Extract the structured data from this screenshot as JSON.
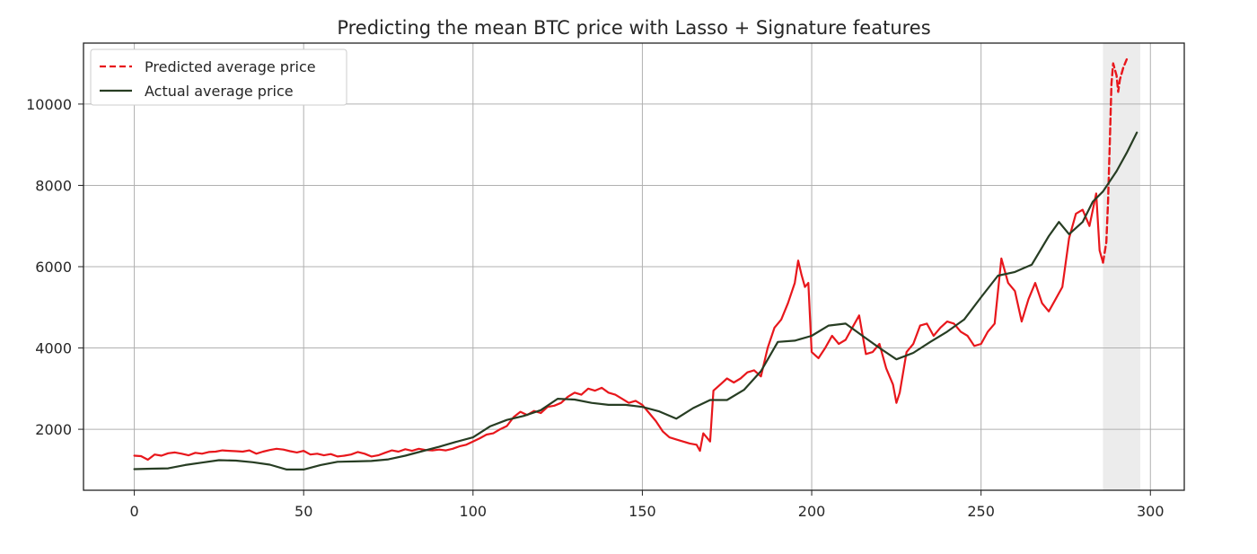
{
  "chart_data": {
    "type": "line",
    "title": "Predicting the mean BTC price with Lasso + Signature features",
    "xlabel": "",
    "ylabel": "",
    "xlim": [
      -15,
      310
    ],
    "ylim": [
      500,
      11500
    ],
    "xticks": [
      0,
      50,
      100,
      150,
      200,
      250,
      300
    ],
    "yticks": [
      2000,
      4000,
      6000,
      8000,
      10000
    ],
    "grid": true,
    "legend_position": "top-left",
    "highlight_region": [
      286,
      297
    ],
    "highlight_color": "#ececec",
    "series": [
      {
        "name": "Predicted average price",
        "color": "#e8171c",
        "style": "solid",
        "points": [
          [
            0,
            1350
          ],
          [
            2,
            1340
          ],
          [
            4,
            1250
          ],
          [
            6,
            1380
          ],
          [
            8,
            1350
          ],
          [
            10,
            1410
          ],
          [
            12,
            1430
          ],
          [
            14,
            1400
          ],
          [
            16,
            1360
          ],
          [
            18,
            1420
          ],
          [
            20,
            1400
          ],
          [
            22,
            1440
          ],
          [
            24,
            1450
          ],
          [
            26,
            1480
          ],
          [
            28,
            1470
          ],
          [
            30,
            1460
          ],
          [
            32,
            1450
          ],
          [
            34,
            1480
          ],
          [
            36,
            1400
          ],
          [
            38,
            1450
          ],
          [
            40,
            1490
          ],
          [
            42,
            1520
          ],
          [
            44,
            1500
          ],
          [
            46,
            1460
          ],
          [
            48,
            1430
          ],
          [
            50,
            1470
          ],
          [
            52,
            1380
          ],
          [
            54,
            1400
          ],
          [
            56,
            1360
          ],
          [
            58,
            1390
          ],
          [
            60,
            1330
          ],
          [
            62,
            1350
          ],
          [
            64,
            1380
          ],
          [
            66,
            1440
          ],
          [
            68,
            1400
          ],
          [
            70,
            1330
          ],
          [
            72,
            1360
          ],
          [
            74,
            1420
          ],
          [
            76,
            1480
          ],
          [
            78,
            1450
          ],
          [
            80,
            1510
          ],
          [
            82,
            1470
          ],
          [
            84,
            1520
          ],
          [
            86,
            1490
          ],
          [
            88,
            1480
          ],
          [
            90,
            1500
          ],
          [
            92,
            1480
          ],
          [
            94,
            1520
          ],
          [
            96,
            1580
          ],
          [
            98,
            1620
          ],
          [
            100,
            1700
          ],
          [
            102,
            1780
          ],
          [
            104,
            1870
          ],
          [
            106,
            1900
          ],
          [
            108,
            2000
          ],
          [
            110,
            2080
          ],
          [
            112,
            2300
          ],
          [
            114,
            2430
          ],
          [
            116,
            2350
          ],
          [
            118,
            2450
          ],
          [
            120,
            2400
          ],
          [
            122,
            2550
          ],
          [
            124,
            2580
          ],
          [
            126,
            2650
          ],
          [
            128,
            2800
          ],
          [
            130,
            2900
          ],
          [
            132,
            2850
          ],
          [
            134,
            3000
          ],
          [
            136,
            2950
          ],
          [
            138,
            3020
          ],
          [
            140,
            2900
          ],
          [
            142,
            2850
          ],
          [
            144,
            2750
          ],
          [
            146,
            2650
          ],
          [
            148,
            2700
          ],
          [
            150,
            2600
          ],
          [
            152,
            2400
          ],
          [
            154,
            2200
          ],
          [
            156,
            1950
          ],
          [
            158,
            1800
          ],
          [
            160,
            1750
          ],
          [
            162,
            1700
          ],
          [
            164,
            1650
          ],
          [
            166,
            1620
          ],
          [
            167,
            1470
          ],
          [
            168,
            1900
          ],
          [
            170,
            1700
          ],
          [
            171,
            2950
          ],
          [
            173,
            3100
          ],
          [
            175,
            3250
          ],
          [
            177,
            3150
          ],
          [
            179,
            3250
          ],
          [
            181,
            3400
          ],
          [
            183,
            3450
          ],
          [
            185,
            3300
          ],
          [
            187,
            4000
          ],
          [
            189,
            4500
          ],
          [
            191,
            4700
          ],
          [
            193,
            5100
          ],
          [
            195,
            5600
          ],
          [
            196,
            6150
          ],
          [
            197,
            5800
          ],
          [
            198,
            5500
          ],
          [
            199,
            5600
          ],
          [
            200,
            3900
          ],
          [
            202,
            3750
          ],
          [
            204,
            4000
          ],
          [
            206,
            4300
          ],
          [
            208,
            4100
          ],
          [
            210,
            4200
          ],
          [
            212,
            4500
          ],
          [
            214,
            4800
          ],
          [
            216,
            3850
          ],
          [
            218,
            3900
          ],
          [
            220,
            4100
          ],
          [
            222,
            3500
          ],
          [
            224,
            3100
          ],
          [
            225,
            2650
          ],
          [
            226,
            2900
          ],
          [
            228,
            3900
          ],
          [
            230,
            4100
          ],
          [
            232,
            4550
          ],
          [
            234,
            4600
          ],
          [
            236,
            4300
          ],
          [
            238,
            4500
          ],
          [
            240,
            4650
          ],
          [
            242,
            4600
          ],
          [
            244,
            4400
          ],
          [
            246,
            4300
          ],
          [
            248,
            4050
          ],
          [
            250,
            4100
          ],
          [
            252,
            4400
          ],
          [
            254,
            4600
          ],
          [
            256,
            6200
          ],
          [
            258,
            5600
          ],
          [
            260,
            5400
          ],
          [
            262,
            4650
          ],
          [
            264,
            5200
          ],
          [
            266,
            5600
          ],
          [
            268,
            5100
          ],
          [
            270,
            4900
          ],
          [
            272,
            5200
          ],
          [
            274,
            5500
          ],
          [
            276,
            6700
          ],
          [
            278,
            7300
          ],
          [
            280,
            7400
          ],
          [
            282,
            7000
          ],
          [
            284,
            7800
          ],
          [
            285,
            6400
          ],
          [
            286,
            6100
          ]
        ]
      },
      {
        "name": "",
        "color": "#e8171c",
        "style": "dashed",
        "points": [
          [
            286,
            6100
          ],
          [
            287,
            6600
          ],
          [
            287.5,
            7600
          ],
          [
            288,
            9000
          ],
          [
            288.5,
            10500
          ],
          [
            289,
            11000
          ],
          [
            290,
            10700
          ],
          [
            290.5,
            10300
          ],
          [
            291,
            10600
          ],
          [
            292,
            10900
          ],
          [
            293,
            11100
          ]
        ]
      },
      {
        "name": "Actual average price",
        "color": "#273d23",
        "style": "solid",
        "points": [
          [
            0,
            1020
          ],
          [
            5,
            1030
          ],
          [
            10,
            1040
          ],
          [
            15,
            1120
          ],
          [
            20,
            1180
          ],
          [
            25,
            1240
          ],
          [
            30,
            1230
          ],
          [
            35,
            1190
          ],
          [
            40,
            1130
          ],
          [
            45,
            1010
          ],
          [
            50,
            1010
          ],
          [
            55,
            1120
          ],
          [
            60,
            1200
          ],
          [
            65,
            1210
          ],
          [
            70,
            1220
          ],
          [
            75,
            1260
          ],
          [
            80,
            1350
          ],
          [
            85,
            1460
          ],
          [
            90,
            1570
          ],
          [
            95,
            1690
          ],
          [
            100,
            1800
          ],
          [
            105,
            2070
          ],
          [
            110,
            2230
          ],
          [
            115,
            2330
          ],
          [
            120,
            2470
          ],
          [
            125,
            2750
          ],
          [
            130,
            2730
          ],
          [
            135,
            2650
          ],
          [
            140,
            2600
          ],
          [
            145,
            2600
          ],
          [
            150,
            2550
          ],
          [
            155,
            2440
          ],
          [
            160,
            2260
          ],
          [
            165,
            2520
          ],
          [
            170,
            2720
          ],
          [
            175,
            2720
          ],
          [
            180,
            2970
          ],
          [
            185,
            3430
          ],
          [
            190,
            4150
          ],
          [
            195,
            4180
          ],
          [
            200,
            4300
          ],
          [
            205,
            4550
          ],
          [
            210,
            4600
          ],
          [
            215,
            4300
          ],
          [
            220,
            4000
          ],
          [
            225,
            3720
          ],
          [
            230,
            3880
          ],
          [
            235,
            4150
          ],
          [
            240,
            4400
          ],
          [
            245,
            4700
          ],
          [
            250,
            5250
          ],
          [
            255,
            5780
          ],
          [
            260,
            5870
          ],
          [
            265,
            6050
          ],
          [
            270,
            6750
          ],
          [
            273,
            7100
          ],
          [
            276,
            6800
          ],
          [
            280,
            7100
          ],
          [
            283,
            7600
          ],
          [
            286,
            7850
          ],
          [
            290,
            8350
          ],
          [
            293,
            8800
          ],
          [
            296,
            9300
          ]
        ]
      }
    ]
  }
}
